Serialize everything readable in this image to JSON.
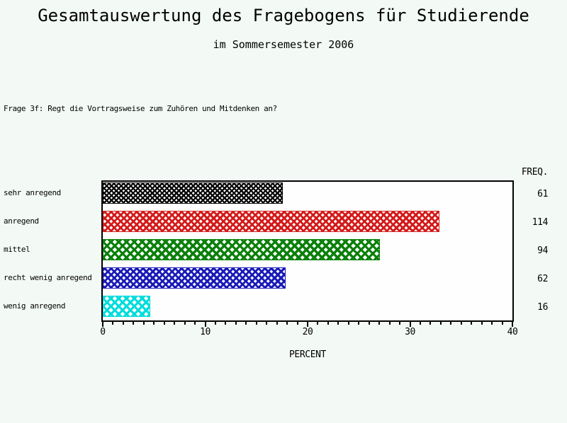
{
  "page": {
    "background_color": "#f3faf5"
  },
  "header": {
    "title": "Gesamtauswertung des Fragebogens für Studierende",
    "subtitle": "im Sommersemester 2006"
  },
  "question": "Frage 3f: Regt die Vortragsweise zum Zuhören und Mitdenken an?",
  "chart_data": {
    "type": "bar",
    "orientation": "horizontal",
    "title": "Gesamtauswertung des Fragebogens für Studierende",
    "subtitle": "im Sommersemester 2006",
    "categories": [
      "sehr anregend",
      "anregend",
      "mittel",
      "recht wenig anregend",
      "wenig anregend"
    ],
    "series": [
      {
        "name": "PERCENT",
        "values": [
          17.58,
          32.85,
          27.09,
          17.87,
          4.61
        ]
      }
    ],
    "frequencies": [
      61,
      114,
      94,
      62,
      16
    ],
    "freq_header": "FREQ.",
    "bar_colors": [
      "#000000",
      "#d41a1a",
      "#0a800a",
      "#1a1ab8",
      "#00dcdc"
    ],
    "pattern": "crosshatch",
    "xlabel": "PERCENT",
    "ylabel": "",
    "xlim": [
      0,
      40
    ],
    "xticks": [
      0,
      10,
      20,
      30,
      40
    ],
    "minor_tick_step": 1,
    "grid": false,
    "legend": "none",
    "frame_color": "#000000"
  }
}
